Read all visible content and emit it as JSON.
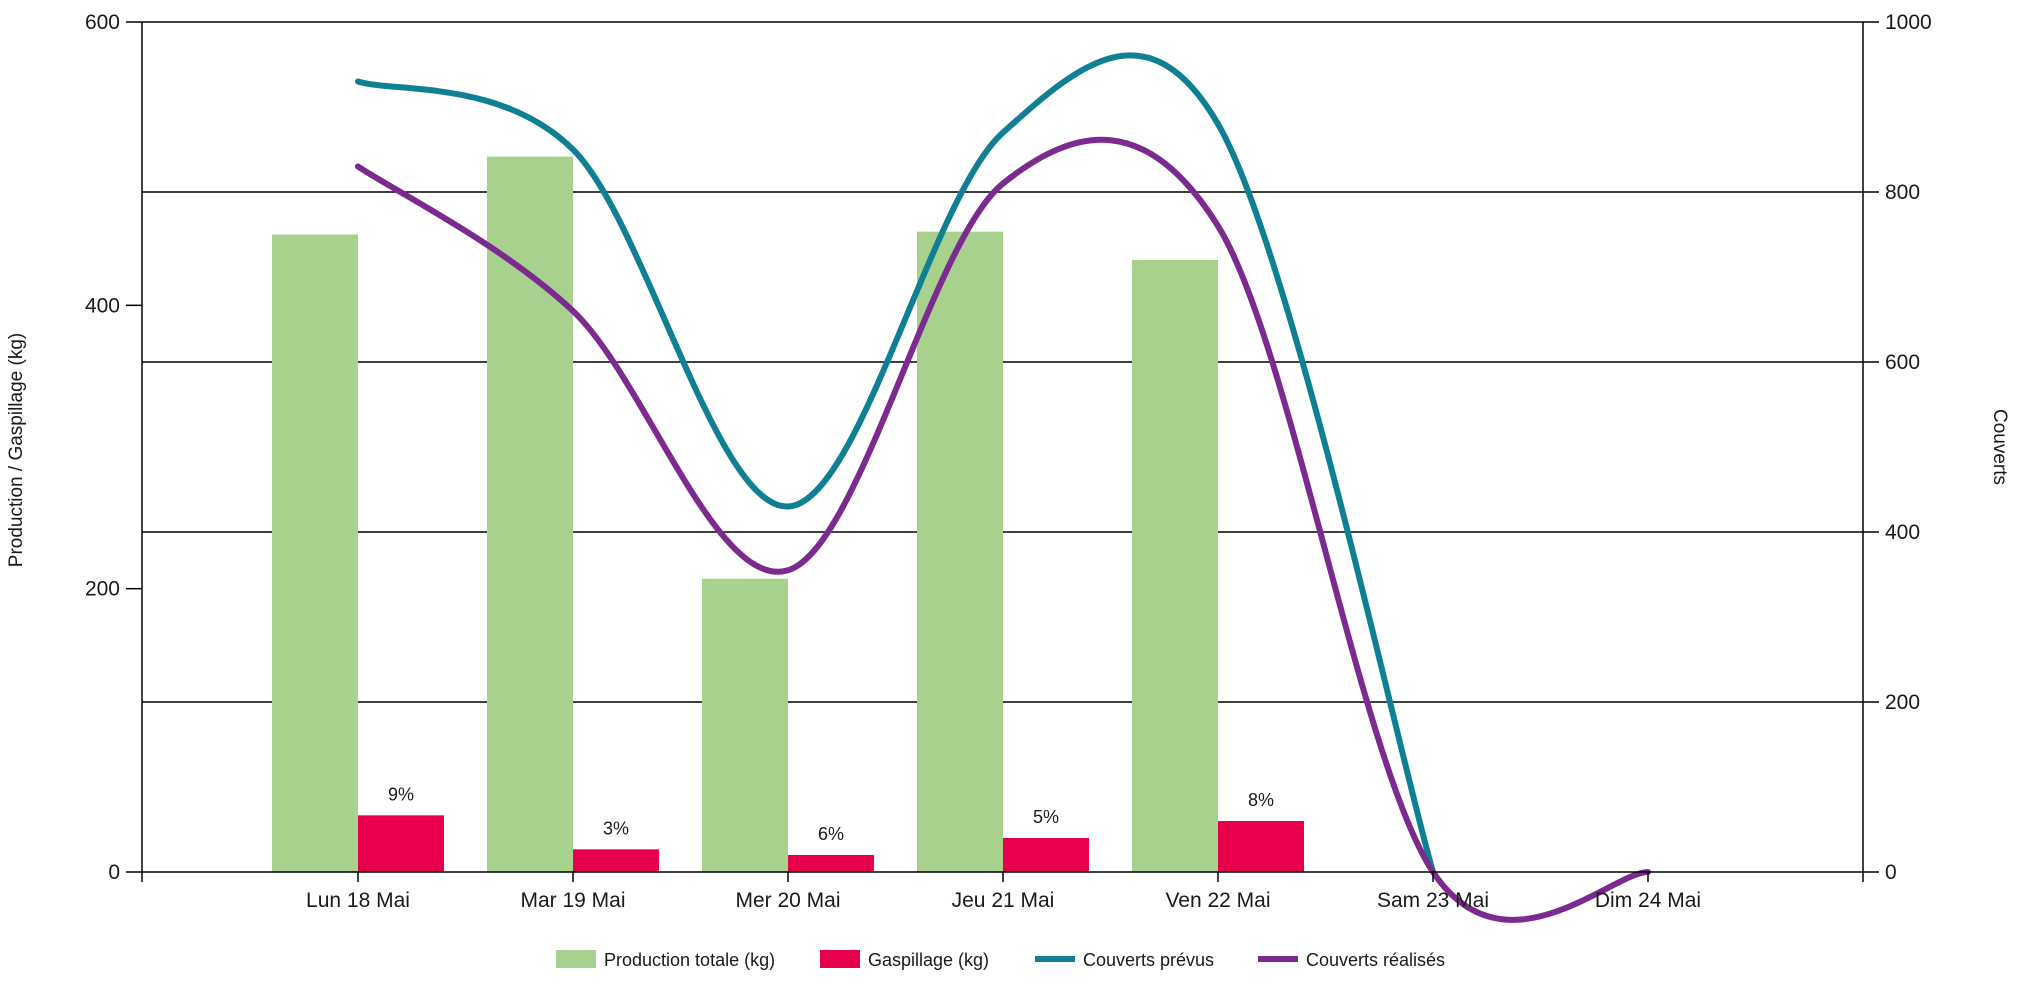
{
  "chart_data": {
    "type": "bar",
    "categories": [
      "Lun 18 Mai",
      "Mar 19 Mai",
      "Mer 20 Mai",
      "Jeu 21 Mai",
      "Ven 22 Mai",
      "Sam 23 Mai",
      "Dim 24 Mai"
    ],
    "bar_series": [
      {
        "name": "Production totale (kg)",
        "color": "#a9d18e",
        "values": [
          450,
          505,
          207,
          452,
          432,
          0,
          0
        ]
      },
      {
        "name": "Gaspillage (kg)",
        "color": "#e8004d",
        "values": [
          40,
          16,
          12,
          24,
          36,
          0,
          0
        ],
        "labels": [
          "9%",
          "3%",
          "6%",
          "5%",
          "8%",
          "",
          ""
        ]
      }
    ],
    "line_series": [
      {
        "name": "Couverts prévus",
        "color": "#0f7f93",
        "axis": "right",
        "values": [
          930,
          850,
          430,
          870,
          880,
          0,
          null
        ],
        "smooth": true
      },
      {
        "name": "Couverts réalisés",
        "color": "#7b2a8f",
        "axis": "right",
        "values": [
          830,
          660,
          355,
          810,
          760,
          0,
          0
        ],
        "smooth": true
      }
    ],
    "y_left": {
      "label": "Production / Gaspillage (kg)",
      "ylim": [
        0,
        600
      ],
      "ticks": [
        "0",
        "200",
        "400",
        "600"
      ]
    },
    "y_right": {
      "label": "Couverts",
      "ylim": [
        0,
        1000
      ],
      "ticks": [
        "0",
        "200",
        "400",
        "600",
        "800",
        "1000"
      ]
    },
    "grid": true,
    "legend": "bottom-center"
  }
}
